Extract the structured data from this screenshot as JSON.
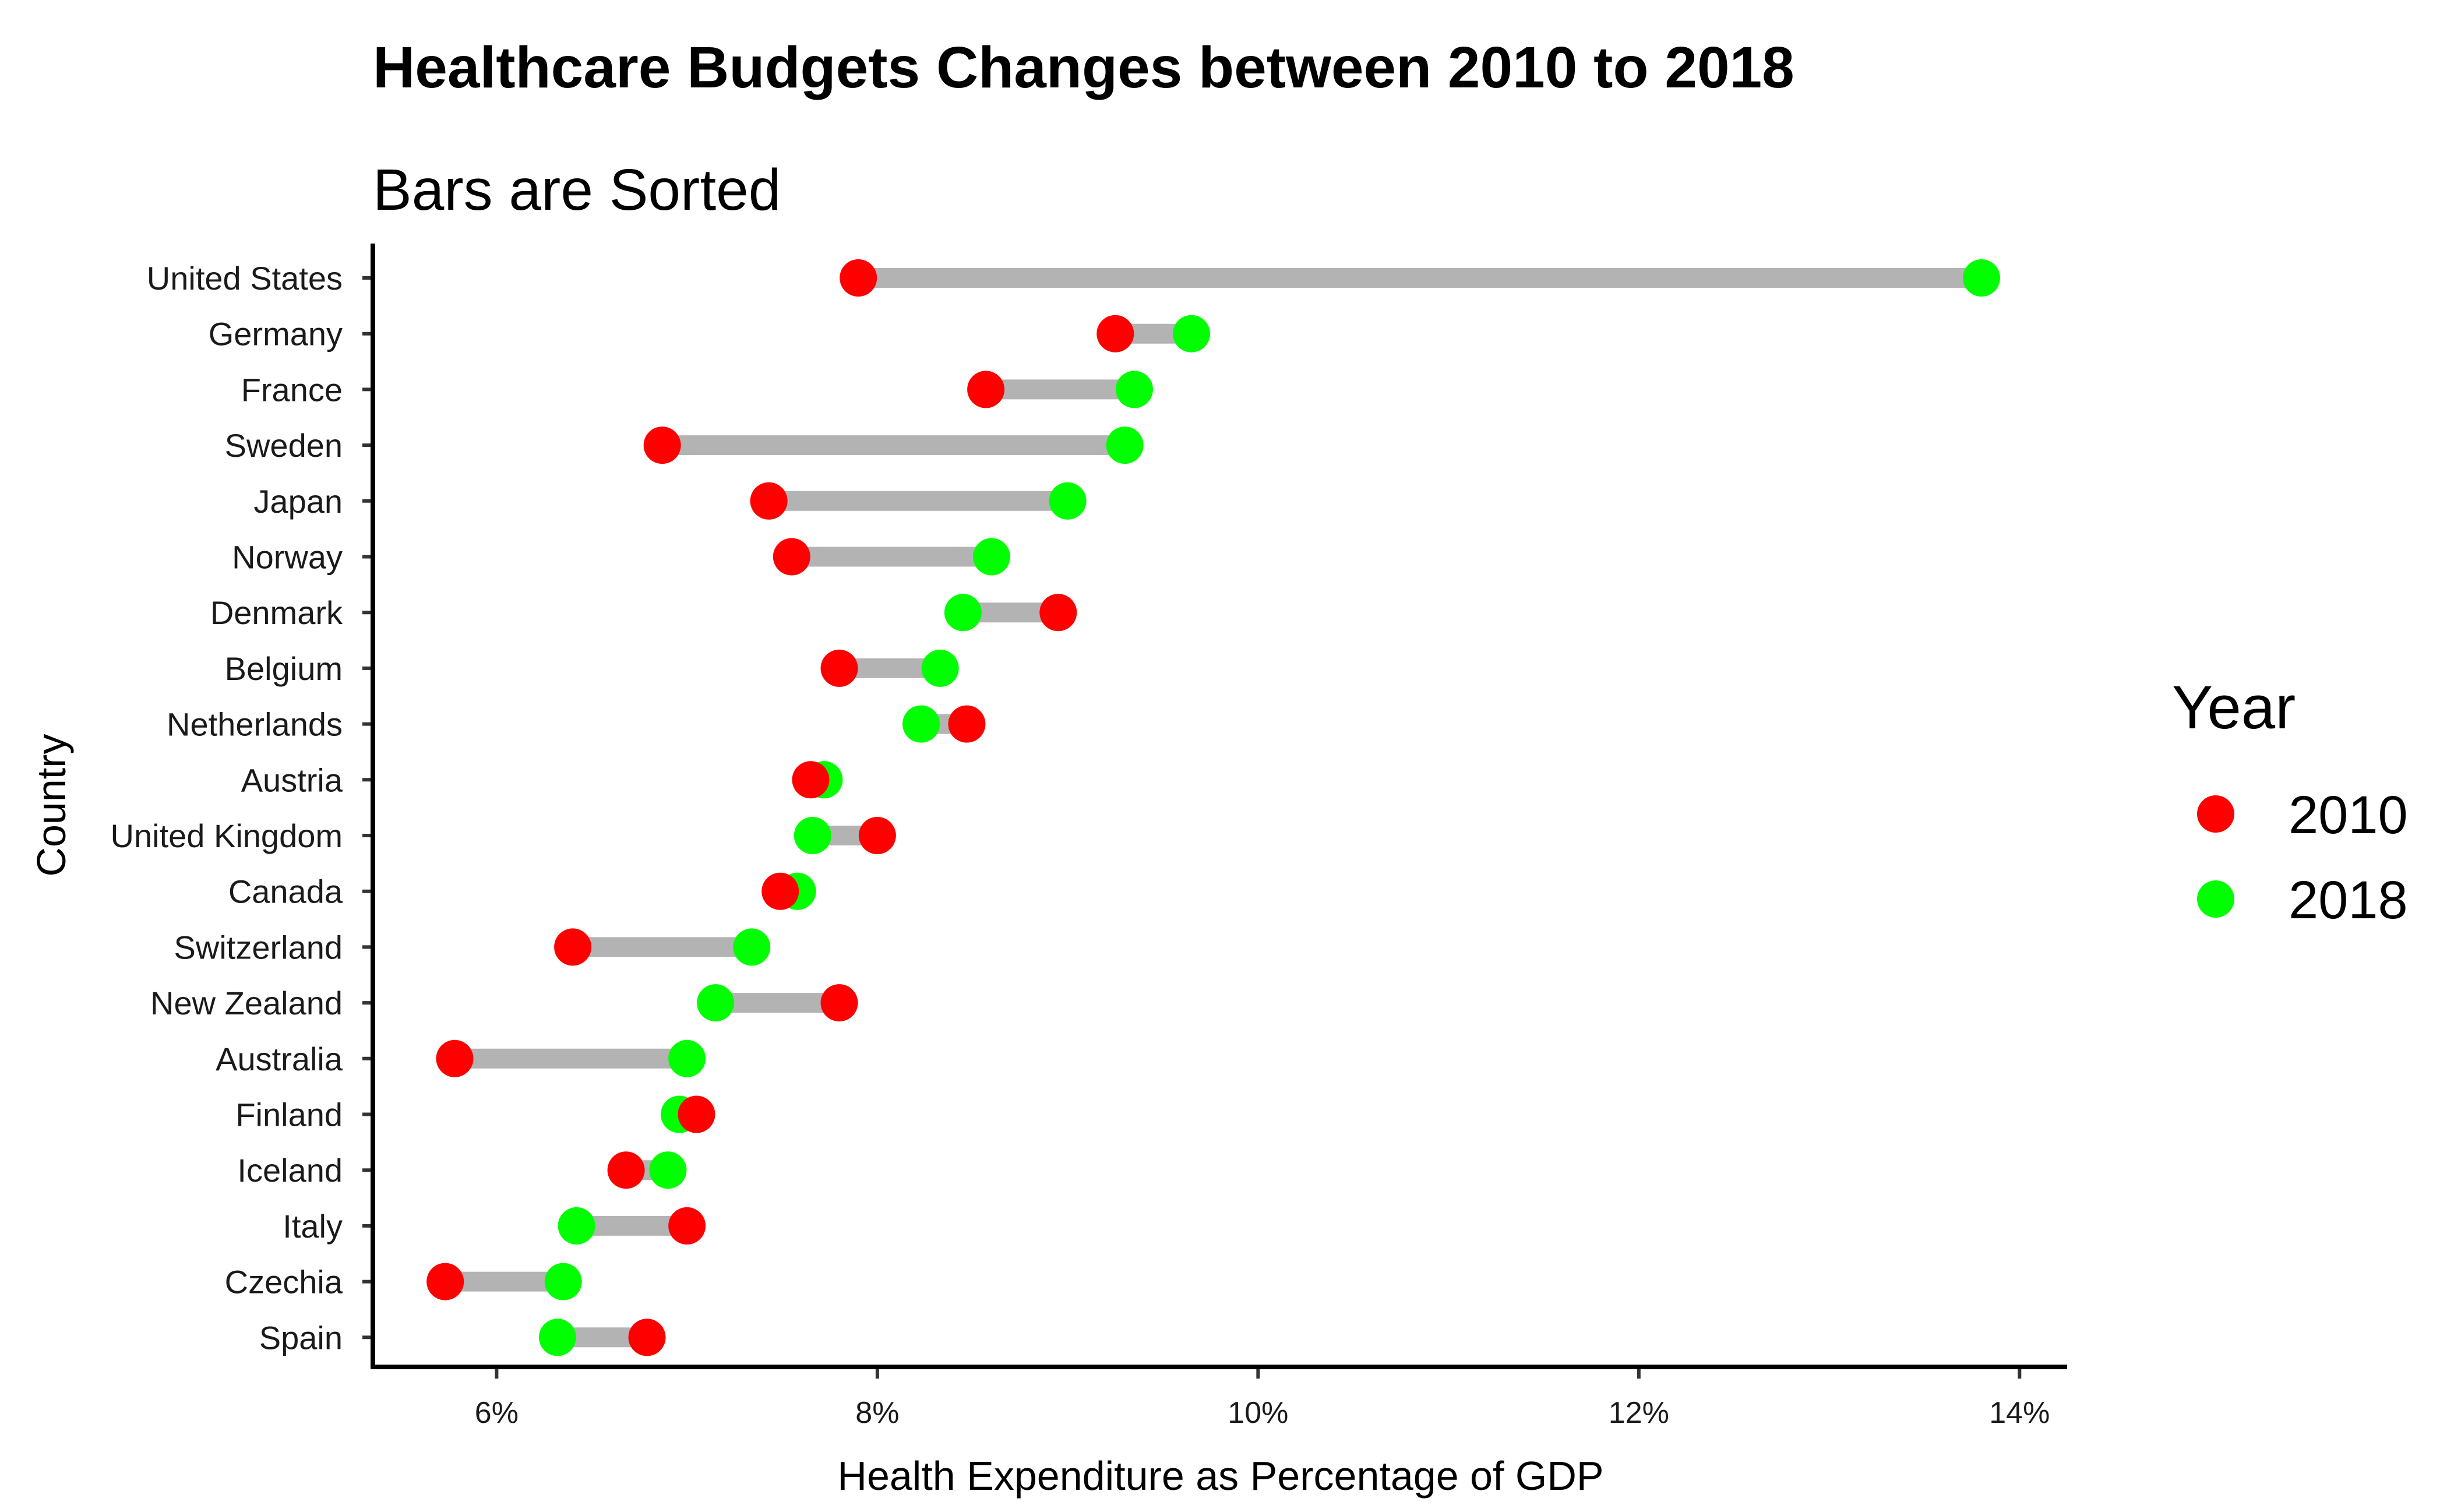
{
  "chart_data": {
    "type": "dumbbell",
    "title": "Healthcare Budgets Changes between 2010 to 2018",
    "subtitle": "Bars are Sorted",
    "xlabel": "Health Expenditure as Percentage of GDP",
    "ylabel": "Country",
    "xlim": [
      5.35,
      14.25
    ],
    "x_ticks": [
      6,
      8,
      10,
      12,
      14
    ],
    "x_tick_labels": [
      "6%",
      "8%",
      "10%",
      "12%",
      "14%"
    ],
    "legend": {
      "title": "Year",
      "position": "right",
      "entries": [
        {
          "label": "2010",
          "color": "#ff0000"
        },
        {
          "label": "2018",
          "color": "#00ff00"
        }
      ]
    },
    "grid": false,
    "categories": [
      "United States",
      "Germany",
      "France",
      "Sweden",
      "Japan",
      "Norway",
      "Denmark",
      "Belgium",
      "Netherlands",
      "Austria",
      "United Kingdom",
      "Canada",
      "Switzerland",
      "New Zealand",
      "Australia",
      "Finland",
      "Iceland",
      "Italy",
      "Czechia",
      "Spain"
    ],
    "series": [
      {
        "name": "2010",
        "color": "#ff0000",
        "values": [
          7.9,
          9.25,
          8.57,
          6.87,
          7.43,
          7.55,
          8.95,
          7.8,
          8.47,
          7.65,
          8.0,
          7.49,
          6.4,
          7.8,
          5.78,
          7.05,
          6.68,
          7.0,
          5.73,
          6.79
        ]
      },
      {
        "name": "2018",
        "color": "#00ff00",
        "values": [
          13.8,
          9.65,
          9.35,
          9.3,
          9.0,
          8.6,
          8.45,
          8.33,
          8.23,
          7.72,
          7.66,
          7.58,
          7.34,
          7.15,
          7.0,
          6.96,
          6.9,
          6.42,
          6.35,
          6.32
        ]
      }
    ]
  }
}
